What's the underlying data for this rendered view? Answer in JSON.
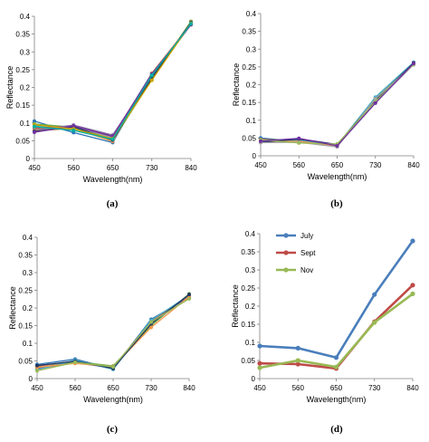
{
  "chart_data": [
    {
      "type": "line",
      "panel_label": "(a)",
      "xlabel": "Wavelength(nm)",
      "ylabel": "Reflectance",
      "categories": [
        "450",
        "560",
        "650",
        "730",
        "840"
      ],
      "ylim": [
        0,
        0.4
      ],
      "yticks": [
        "0",
        "0.05",
        "0.1",
        "0.15",
        "0.2",
        "0.25",
        "0.3",
        "0.35",
        "0.4"
      ],
      "grid": false,
      "series": [
        {
          "values": [
            0.105,
            0.073,
            0.045,
            0.235,
            0.38
          ],
          "color": "#2e75b6"
        },
        {
          "values": [
            0.097,
            0.088,
            0.055,
            0.228,
            0.385
          ],
          "color": "#70ad47"
        },
        {
          "values": [
            0.092,
            0.086,
            0.06,
            0.24,
            0.378
          ],
          "color": "#4bacc6"
        },
        {
          "values": [
            0.088,
            0.09,
            0.058,
            0.232,
            0.382
          ],
          "color": "#a5a5a5"
        },
        {
          "values": [
            0.085,
            0.092,
            0.064,
            0.236,
            0.38
          ],
          "color": "#c0504d"
        },
        {
          "values": [
            0.082,
            0.087,
            0.05,
            0.222,
            0.386
          ],
          "color": "#9bbb59"
        },
        {
          "values": [
            0.08,
            0.094,
            0.066,
            0.23,
            0.376
          ],
          "color": "#8064a2"
        },
        {
          "values": [
            0.078,
            0.084,
            0.048,
            0.24,
            0.379
          ],
          "color": "#f79646"
        },
        {
          "values": [
            0.076,
            0.089,
            0.052,
            0.226,
            0.383
          ],
          "color": "#1f3864"
        },
        {
          "values": [
            0.074,
            0.091,
            0.062,
            0.238,
            0.377
          ],
          "color": "#7030a0"
        },
        {
          "values": [
            0.095,
            0.083,
            0.056,
            0.22,
            0.381
          ],
          "color": "#c9a300"
        },
        {
          "values": [
            0.09,
            0.079,
            0.054,
            0.234,
            0.379
          ],
          "color": "#00b0a0"
        }
      ]
    },
    {
      "type": "line",
      "panel_label": "(b)",
      "xlabel": "Wavelength(nm)",
      "ylabel": "Reflectance",
      "categories": [
        "450",
        "560",
        "650",
        "730",
        "840"
      ],
      "ylim": [
        0,
        0.4
      ],
      "yticks": [
        "0",
        "0.05",
        "0.1",
        "0.15",
        "0.2",
        "0.25",
        "0.3",
        "0.35",
        "0.4"
      ],
      "grid": false,
      "series": [
        {
          "values": [
            0.05,
            0.04,
            0.028,
            0.158,
            0.262
          ],
          "color": "#2e75b6"
        },
        {
          "values": [
            0.046,
            0.043,
            0.03,
            0.155,
            0.258
          ],
          "color": "#c0504d"
        },
        {
          "values": [
            0.044,
            0.046,
            0.026,
            0.162,
            0.26
          ],
          "color": "#70ad47"
        },
        {
          "values": [
            0.042,
            0.048,
            0.032,
            0.15,
            0.257
          ],
          "color": "#8064a2"
        },
        {
          "values": [
            0.04,
            0.044,
            0.029,
            0.165,
            0.263
          ],
          "color": "#4bacc6"
        },
        {
          "values": [
            0.039,
            0.041,
            0.027,
            0.153,
            0.259
          ],
          "color": "#f79646"
        },
        {
          "values": [
            0.038,
            0.047,
            0.031,
            0.157,
            0.261
          ],
          "color": "#1f3864"
        },
        {
          "values": [
            0.037,
            0.038,
            0.025,
            0.16,
            0.256
          ],
          "color": "#a5a5a5"
        },
        {
          "values": [
            0.045,
            0.036,
            0.033,
            0.152,
            0.258
          ],
          "color": "#9bbb59"
        },
        {
          "values": [
            0.041,
            0.049,
            0.028,
            0.148,
            0.26
          ],
          "color": "#7030a0"
        }
      ]
    },
    {
      "type": "line",
      "panel_label": "(c)",
      "xlabel": "Wavelength(nm)",
      "ylabel": "Reflectance",
      "categories": [
        "450",
        "560",
        "650",
        "730",
        "840"
      ],
      "ylim": [
        0,
        0.4
      ],
      "yticks": [
        "0",
        "0.05",
        "0.1",
        "0.15",
        "0.2",
        "0.25",
        "0.3",
        "0.35",
        "0.4"
      ],
      "grid": false,
      "series": [
        {
          "values": [
            0.04,
            0.055,
            0.028,
            0.168,
            0.23
          ],
          "color": "#2e75b6"
        },
        {
          "values": [
            0.035,
            0.05,
            0.032,
            0.162,
            0.235
          ],
          "color": "#c0504d"
        },
        {
          "values": [
            0.03,
            0.048,
            0.036,
            0.15,
            0.24
          ],
          "color": "#70ad47"
        },
        {
          "values": [
            0.028,
            0.045,
            0.03,
            0.158,
            0.228
          ],
          "color": "#8064a2"
        },
        {
          "values": [
            0.025,
            0.052,
            0.026,
            0.165,
            0.236
          ],
          "color": "#4bacc6"
        },
        {
          "values": [
            0.032,
            0.043,
            0.034,
            0.145,
            0.232
          ],
          "color": "#f79646"
        },
        {
          "values": [
            0.037,
            0.049,
            0.029,
            0.155,
            0.238
          ],
          "color": "#1f3864"
        },
        {
          "values": [
            0.022,
            0.046,
            0.033,
            0.16,
            0.226
          ],
          "color": "#9bbb59"
        }
      ]
    },
    {
      "type": "line",
      "panel_label": "(d)",
      "xlabel": "Wavelength(nm)",
      "ylabel": "Reflectance",
      "categories": [
        "450",
        "560",
        "650",
        "730",
        "840"
      ],
      "ylim": [
        0,
        0.4
      ],
      "yticks": [
        "0",
        "0.05",
        "0.1",
        "0.15",
        "0.2",
        "0.25",
        "0.3",
        "0.35",
        "0.4"
      ],
      "grid": false,
      "legend": "top-left",
      "series": [
        {
          "name": "July",
          "values": [
            0.09,
            0.084,
            0.058,
            0.232,
            0.38
          ],
          "color": "#4a7ebb"
        },
        {
          "name": "Sept",
          "values": [
            0.042,
            0.04,
            0.028,
            0.157,
            0.258
          ],
          "color": "#be4b48"
        },
        {
          "name": "Nov",
          "values": [
            0.03,
            0.05,
            0.032,
            0.155,
            0.234
          ],
          "color": "#98b954"
        }
      ]
    }
  ]
}
